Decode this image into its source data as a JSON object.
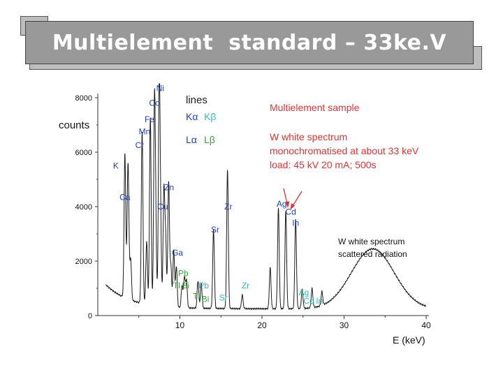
{
  "slide": {
    "title": "Multielement  standard – 33ke.V"
  },
  "chart_data": {
    "type": "line",
    "title": "",
    "xlabel": "E (keV)",
    "ylabel": "counts",
    "xlim": [
      0,
      40
    ],
    "ylim": [
      0,
      8000
    ],
    "x_ticks": [
      "10",
      "20",
      "30",
      "40"
    ],
    "y_ticks": [
      "0",
      "2000",
      "4000",
      "6000",
      "8000"
    ],
    "grid": false,
    "legend": {
      "heading": "lines",
      "ka": "Kα",
      "kb": "Kβ",
      "la": "Lα",
      "lb": "Lβ"
    },
    "info": {
      "sample": "Multielement sample",
      "line1": "W white spectrum",
      "line2": "monochromatised at about 33 keV",
      "line3": "load: 45 kV 20 mA; 500s"
    },
    "scatter_note": {
      "line1": "W white spectrum",
      "line2": "scattered radiation"
    },
    "peaks": [
      {
        "e": 3.3,
        "c": 5300
      },
      {
        "e": 3.6,
        "c": 1200
      },
      {
        "e": 3.7,
        "c": 4200
      },
      {
        "e": 4.0,
        "c": 1500
      },
      {
        "e": 5.4,
        "c": 6300
      },
      {
        "e": 5.95,
        "c": 2300
      },
      {
        "e": 6.4,
        "c": 6900
      },
      {
        "e": 7.06,
        "c": 2500
      },
      {
        "e": 6.9,
        "c": 7200
      },
      {
        "e": 7.65,
        "c": 2600
      },
      {
        "e": 7.48,
        "c": 8100
      },
      {
        "e": 8.26,
        "c": 2400
      },
      {
        "e": 8.05,
        "c": 4200
      },
      {
        "e": 8.9,
        "c": 1500
      },
      {
        "e": 8.63,
        "c": 4600
      },
      {
        "e": 9.57,
        "c": 1500
      },
      {
        "e": 9.25,
        "c": 2100
      },
      {
        "e": 10.26,
        "c": 800
      },
      {
        "e": 10.55,
        "c": 1100
      },
      {
        "e": 12.6,
        "c": 900
      },
      {
        "e": 12.2,
        "c": 1000
      },
      {
        "e": 10.8,
        "c": 1000
      },
      {
        "e": 14.1,
        "c": 2900
      },
      {
        "e": 15.8,
        "c": 3900
      },
      {
        "e": 15.8,
        "c": 1200
      },
      {
        "e": 17.6,
        "c": 500
      },
      {
        "e": 21.0,
        "c": 1500
      },
      {
        "e": 22.0,
        "c": 3700
      },
      {
        "e": 22.9,
        "c": 3600
      },
      {
        "e": 24.1,
        "c": 3300
      },
      {
        "e": 24.9,
        "c": 700
      },
      {
        "e": 26.1,
        "c": 700
      },
      {
        "e": 27.3,
        "c": 500
      }
    ],
    "scatter_hump": {
      "center": 33.5,
      "height": 2200,
      "width": 2.6
    },
    "baseline": 250,
    "element_labels": [
      {
        "text": "Ni",
        "e": 7.6,
        "c": 8250,
        "color": "#1a3fd0"
      },
      {
        "text": "Co",
        "e": 6.9,
        "c": 7700,
        "color": "#1a3fd0"
      },
      {
        "text": "Fe",
        "e": 6.3,
        "c": 7100,
        "color": "#1a3fd0"
      },
      {
        "text": "Mn",
        "e": 5.7,
        "c": 6650,
        "color": "#1a3fd0"
      },
      {
        "text": "Cr",
        "e": 5.1,
        "c": 6150,
        "color": "#1a3fd0"
      },
      {
        "text": "K",
        "e": 2.2,
        "c": 5400,
        "color": "#1a3fd0"
      },
      {
        "text": "Zn",
        "e": 8.7,
        "c": 4600,
        "color": "#1a3fd0"
      },
      {
        "text": "Ca",
        "e": 3.3,
        "c": 4250,
        "color": "#1a3fd0"
      },
      {
        "text": "Cu",
        "e": 7.9,
        "c": 3900,
        "color": "#1a3fd0"
      },
      {
        "text": "Zr",
        "e": 15.9,
        "c": 3900,
        "color": "#1a3fd0"
      },
      {
        "text": "Sr",
        "e": 14.3,
        "c": 3050,
        "color": "#1a3fd0"
      },
      {
        "text": "Ga",
        "e": 9.7,
        "c": 2200,
        "color": "#1a3fd0"
      },
      {
        "text": "Ag",
        "e": 22.4,
        "c": 4000,
        "color": "#1a3fd0"
      },
      {
        "text": "Cd",
        "e": 23.5,
        "c": 3700,
        "color": "#1a3fd0"
      },
      {
        "text": "In",
        "e": 24.1,
        "c": 3300,
        "color": "#1a3fd0"
      },
      {
        "text": "Pb",
        "e": 10.4,
        "c": 1450,
        "color": "#33a833"
      },
      {
        "text": "Tl",
        "e": 9.6,
        "c": 1000,
        "color": "#33a833"
      },
      {
        "text": "Bi",
        "e": 10.7,
        "c": 1000,
        "color": "#33a833"
      },
      {
        "text": "Pb",
        "e": 12.9,
        "c": 1000,
        "color": "#33bbbb"
      },
      {
        "text": "Tl",
        "e": 12.0,
        "c": 600,
        "color": "#33a833"
      },
      {
        "text": "Bi",
        "e": 13.1,
        "c": 500,
        "color": "#33a833"
      },
      {
        "text": "Sr",
        "e": 15.3,
        "c": 550,
        "color": "#33bbbb"
      },
      {
        "text": "Zr",
        "e": 18.0,
        "c": 1000,
        "color": "#33bbbb"
      },
      {
        "text": "Ag",
        "e": 25.1,
        "c": 750,
        "color": "#33bbbb"
      },
      {
        "text": "Cd",
        "e": 25.7,
        "c": 430,
        "color": "#33bbbb"
      },
      {
        "text": "In",
        "e": 27.0,
        "c": 430,
        "color": "#33bbbb"
      }
    ]
  }
}
